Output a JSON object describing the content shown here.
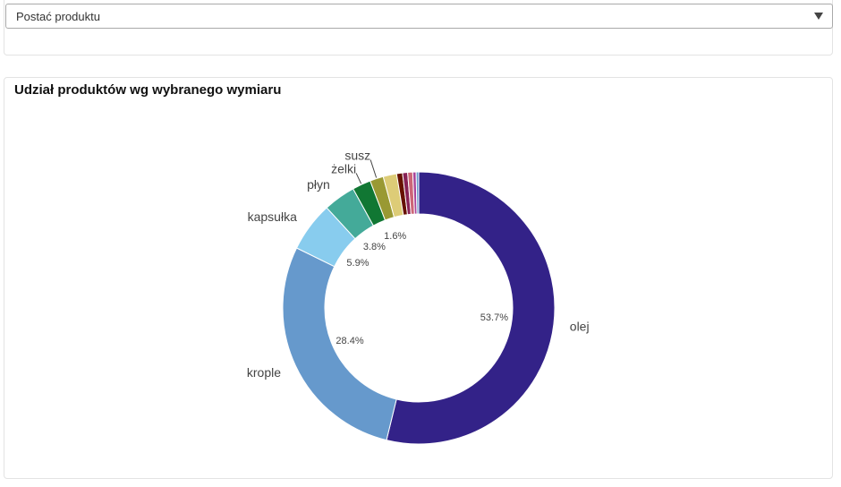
{
  "filter": {
    "selected": "Postać produktu"
  },
  "chart_title": "Udział produktów wg wybranego wymiaru",
  "chart_data": {
    "type": "pie",
    "title": "Udział produktów wg wybranego wymiaru",
    "donut": true,
    "slices": [
      {
        "label": "olej",
        "value": 53.7,
        "color": "#332288",
        "pct_label": "53.7%"
      },
      {
        "label": "krople",
        "value": 28.4,
        "color": "#6699cc",
        "pct_label": "28.4%"
      },
      {
        "label": "kapsułka",
        "value": 5.9,
        "color": "#88ccee",
        "pct_label": "5.9%"
      },
      {
        "label": "płyn",
        "value": 3.8,
        "color": "#44aa99",
        "pct_label": "3.8%"
      },
      {
        "label": "żelki",
        "value": 2.2,
        "color": "#117733",
        "pct_label": ""
      },
      {
        "label": "susz",
        "value": 1.6,
        "color": "#999933",
        "pct_label": "1.6%"
      },
      {
        "label": "",
        "value": 1.6,
        "color": "#ddcc77",
        "pct_label": ""
      },
      {
        "label": "",
        "value": 0.7,
        "color": "#661100",
        "pct_label": ""
      },
      {
        "label": "",
        "value": 0.6,
        "color": "#882255",
        "pct_label": ""
      },
      {
        "label": "",
        "value": 0.6,
        "color": "#cc6677",
        "pct_label": ""
      },
      {
        "label": "",
        "value": 0.4,
        "color": "#aa4499",
        "pct_label": ""
      },
      {
        "label": "",
        "value": 0.3,
        "color": "#6699cc",
        "pct_label": ""
      }
    ]
  }
}
